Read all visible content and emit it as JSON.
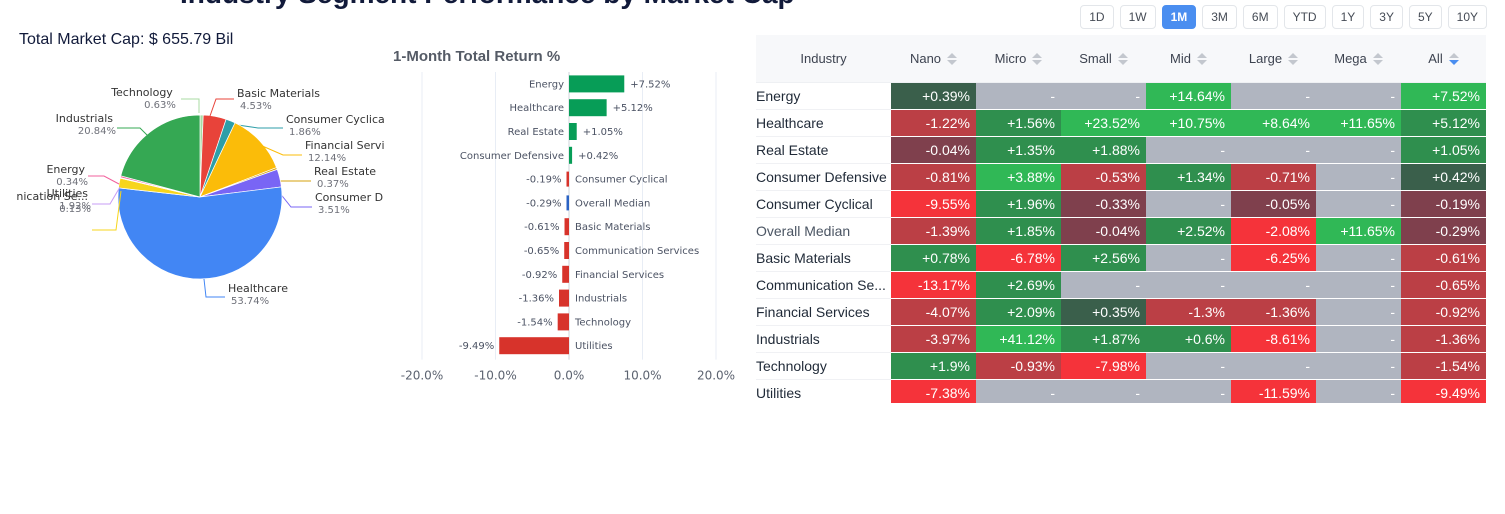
{
  "page_title": "Industry Segment Performance by Market Cap",
  "market_cap": {
    "label": "Total Market Cap: $ 655.79 Bil"
  },
  "periods": {
    "items": [
      "1D",
      "1W",
      "1M",
      "3M",
      "6M",
      "YTD",
      "1Y",
      "3Y",
      "5Y",
      "10Y"
    ],
    "active": "1M"
  },
  "colors": {
    "pos_strong": "#30b856",
    "pos_mid": "#2f8f4e",
    "pos_weak": "#3a5f4b",
    "neg_weak": "#7f404d",
    "neg_mid": "#bb3f45",
    "neg_strong": "#f5333a",
    "empty": "#b0b5c0",
    "bar_pos": "#079d57",
    "bar_neg": "#d7332b",
    "bar_median": "#2b63c4"
  },
  "chart_data": [
    {
      "type": "pie",
      "title": "Total Market Cap: $ 655.79 Bil",
      "start": "top",
      "direction": "clockwise",
      "slices": [
        {
          "label": "Technology",
          "value": 0.63,
          "color": "#a8dba3"
        },
        {
          "label": "Basic Materials",
          "value": 4.53,
          "color": "#e8433a"
        },
        {
          "label": "Consumer Cyclical",
          "value": 1.86,
          "color": "#2d9ea8"
        },
        {
          "label": "Financial Services",
          "value": 12.14,
          "color": "#fbbc09"
        },
        {
          "label": "Real Estate",
          "value": 0.37,
          "color": "#d6a10c"
        },
        {
          "label": "Consumer Defensive",
          "value": 3.51,
          "color": "#7965f5"
        },
        {
          "label": "Healthcare",
          "value": 53.74,
          "color": "#4286f4"
        },
        {
          "label": "Utilities",
          "value": 1.92,
          "color": "#f7d51c"
        },
        {
          "label": "Communication Services",
          "value": 0.13,
          "color": "#c79cf5"
        },
        {
          "label": "Energy",
          "value": 0.34,
          "color": "#f2609c"
        },
        {
          "label": "Industrials",
          "value": 20.84,
          "color": "#35a853"
        }
      ]
    },
    {
      "type": "bar",
      "orientation": "horizontal",
      "title": "1-Month Total Return %",
      "categories": [
        "Energy",
        "Healthcare",
        "Real Estate",
        "Consumer Defensive",
        "Consumer Cyclical",
        "Overall Median",
        "Basic Materials",
        "Communication Services",
        "Financial Services",
        "Industrials",
        "Technology",
        "Utilities"
      ],
      "values": [
        7.52,
        5.12,
        1.05,
        0.42,
        -0.19,
        -0.29,
        -0.61,
        -0.65,
        -0.92,
        -1.36,
        -1.54,
        -9.49
      ],
      "value_labels": [
        "+7.52%",
        "+5.12%",
        "+1.05%",
        "+0.42%",
        "-0.19%",
        "-0.29%",
        "-0.61%",
        "-0.65%",
        "-0.92%",
        "-1.36%",
        "-1.54%",
        "-9.49%"
      ],
      "xlim": [
        -20,
        20
      ],
      "xticks": [
        -20,
        -10,
        0,
        10,
        20
      ],
      "xtick_labels": [
        "-20.0%",
        "-10.0%",
        "0.0%",
        "10.0%",
        "20.0%"
      ],
      "grid": true
    }
  ],
  "table": {
    "columns": [
      "Industry",
      "Nano",
      "Micro",
      "Small",
      "Mid",
      "Large",
      "Mega",
      "All"
    ],
    "sorted_column": "All",
    "rows": [
      {
        "industry": "Energy",
        "median": false,
        "cells": [
          [
            "+0.39%",
            "pos_weak"
          ],
          [
            "-",
            "empty"
          ],
          [
            "-",
            "empty"
          ],
          [
            "+14.64%",
            "pos_strong"
          ],
          [
            "-",
            "empty"
          ],
          [
            "-",
            "empty"
          ],
          [
            "+7.52%",
            "pos_strong"
          ]
        ]
      },
      {
        "industry": "Healthcare",
        "median": false,
        "cells": [
          [
            "-1.22%",
            "neg_mid"
          ],
          [
            "+1.56%",
            "pos_mid"
          ],
          [
            "+23.52%",
            "pos_strong"
          ],
          [
            "+10.75%",
            "pos_strong"
          ],
          [
            "+8.64%",
            "pos_strong"
          ],
          [
            "+11.65%",
            "pos_strong"
          ],
          [
            "+5.12%",
            "pos_mid"
          ]
        ]
      },
      {
        "industry": "Real Estate",
        "median": false,
        "cells": [
          [
            "-0.04%",
            "neg_weak"
          ],
          [
            "+1.35%",
            "pos_mid"
          ],
          [
            "+1.88%",
            "pos_mid"
          ],
          [
            "-",
            "empty"
          ],
          [
            "-",
            "empty"
          ],
          [
            "-",
            "empty"
          ],
          [
            "+1.05%",
            "pos_mid"
          ]
        ]
      },
      {
        "industry": "Consumer Defensive",
        "median": false,
        "cells": [
          [
            "-0.81%",
            "neg_mid"
          ],
          [
            "+3.88%",
            "pos_strong"
          ],
          [
            "-0.53%",
            "neg_mid"
          ],
          [
            "+1.34%",
            "pos_mid"
          ],
          [
            "-0.71%",
            "neg_mid"
          ],
          [
            "-",
            "empty"
          ],
          [
            "+0.42%",
            "pos_weak"
          ]
        ]
      },
      {
        "industry": "Consumer Cyclical",
        "median": false,
        "cells": [
          [
            "-9.55%",
            "neg_strong"
          ],
          [
            "+1.96%",
            "pos_mid"
          ],
          [
            "-0.33%",
            "neg_weak"
          ],
          [
            "-",
            "empty"
          ],
          [
            "-0.05%",
            "neg_weak"
          ],
          [
            "-",
            "empty"
          ],
          [
            "-0.19%",
            "neg_weak"
          ]
        ]
      },
      {
        "industry": "Overall Median",
        "median": true,
        "cells": [
          [
            "-1.39%",
            "neg_mid"
          ],
          [
            "+1.85%",
            "pos_mid"
          ],
          [
            "-0.04%",
            "neg_weak"
          ],
          [
            "+2.52%",
            "pos_mid"
          ],
          [
            "-2.08%",
            "neg_strong"
          ],
          [
            "+11.65%",
            "pos_strong"
          ],
          [
            "-0.29%",
            "neg_weak"
          ]
        ]
      },
      {
        "industry": "Basic Materials",
        "median": false,
        "cells": [
          [
            "+0.78%",
            "pos_mid"
          ],
          [
            "-6.78%",
            "neg_strong"
          ],
          [
            "+2.56%",
            "pos_mid"
          ],
          [
            "-",
            "empty"
          ],
          [
            "-6.25%",
            "neg_strong"
          ],
          [
            "-",
            "empty"
          ],
          [
            "-0.61%",
            "neg_mid"
          ]
        ]
      },
      {
        "industry": "Communication Se...",
        "median": false,
        "cells": [
          [
            "-13.17%",
            "neg_strong"
          ],
          [
            "+2.69%",
            "pos_mid"
          ],
          [
            "-",
            "empty"
          ],
          [
            "-",
            "empty"
          ],
          [
            "-",
            "empty"
          ],
          [
            "-",
            "empty"
          ],
          [
            "-0.65%",
            "neg_mid"
          ]
        ]
      },
      {
        "industry": "Financial Services",
        "median": false,
        "cells": [
          [
            "-4.07%",
            "neg_mid"
          ],
          [
            "+2.09%",
            "pos_mid"
          ],
          [
            "+0.35%",
            "pos_weak"
          ],
          [
            "-1.3%",
            "neg_mid"
          ],
          [
            "-1.36%",
            "neg_mid"
          ],
          [
            "-",
            "empty"
          ],
          [
            "-0.92%",
            "neg_mid"
          ]
        ]
      },
      {
        "industry": "Industrials",
        "median": false,
        "cells": [
          [
            "-3.97%",
            "neg_mid"
          ],
          [
            "+41.12%",
            "pos_strong"
          ],
          [
            "+1.87%",
            "pos_mid"
          ],
          [
            "+0.6%",
            "pos_mid"
          ],
          [
            "-8.61%",
            "neg_strong"
          ],
          [
            "-",
            "empty"
          ],
          [
            "-1.36%",
            "neg_mid"
          ]
        ]
      },
      {
        "industry": "Technology",
        "median": false,
        "cells": [
          [
            "+1.9%",
            "pos_mid"
          ],
          [
            "-0.93%",
            "neg_mid"
          ],
          [
            "-7.98%",
            "neg_strong"
          ],
          [
            "-",
            "empty"
          ],
          [
            "-",
            "empty"
          ],
          [
            "-",
            "empty"
          ],
          [
            "-1.54%",
            "neg_mid"
          ]
        ]
      },
      {
        "industry": "Utilities",
        "median": false,
        "cells": [
          [
            "-7.38%",
            "neg_strong"
          ],
          [
            "-",
            "empty"
          ],
          [
            "-",
            "empty"
          ],
          [
            "-",
            "empty"
          ],
          [
            "-11.59%",
            "neg_strong"
          ],
          [
            "-",
            "empty"
          ],
          [
            "-9.49%",
            "neg_strong"
          ]
        ]
      }
    ]
  }
}
